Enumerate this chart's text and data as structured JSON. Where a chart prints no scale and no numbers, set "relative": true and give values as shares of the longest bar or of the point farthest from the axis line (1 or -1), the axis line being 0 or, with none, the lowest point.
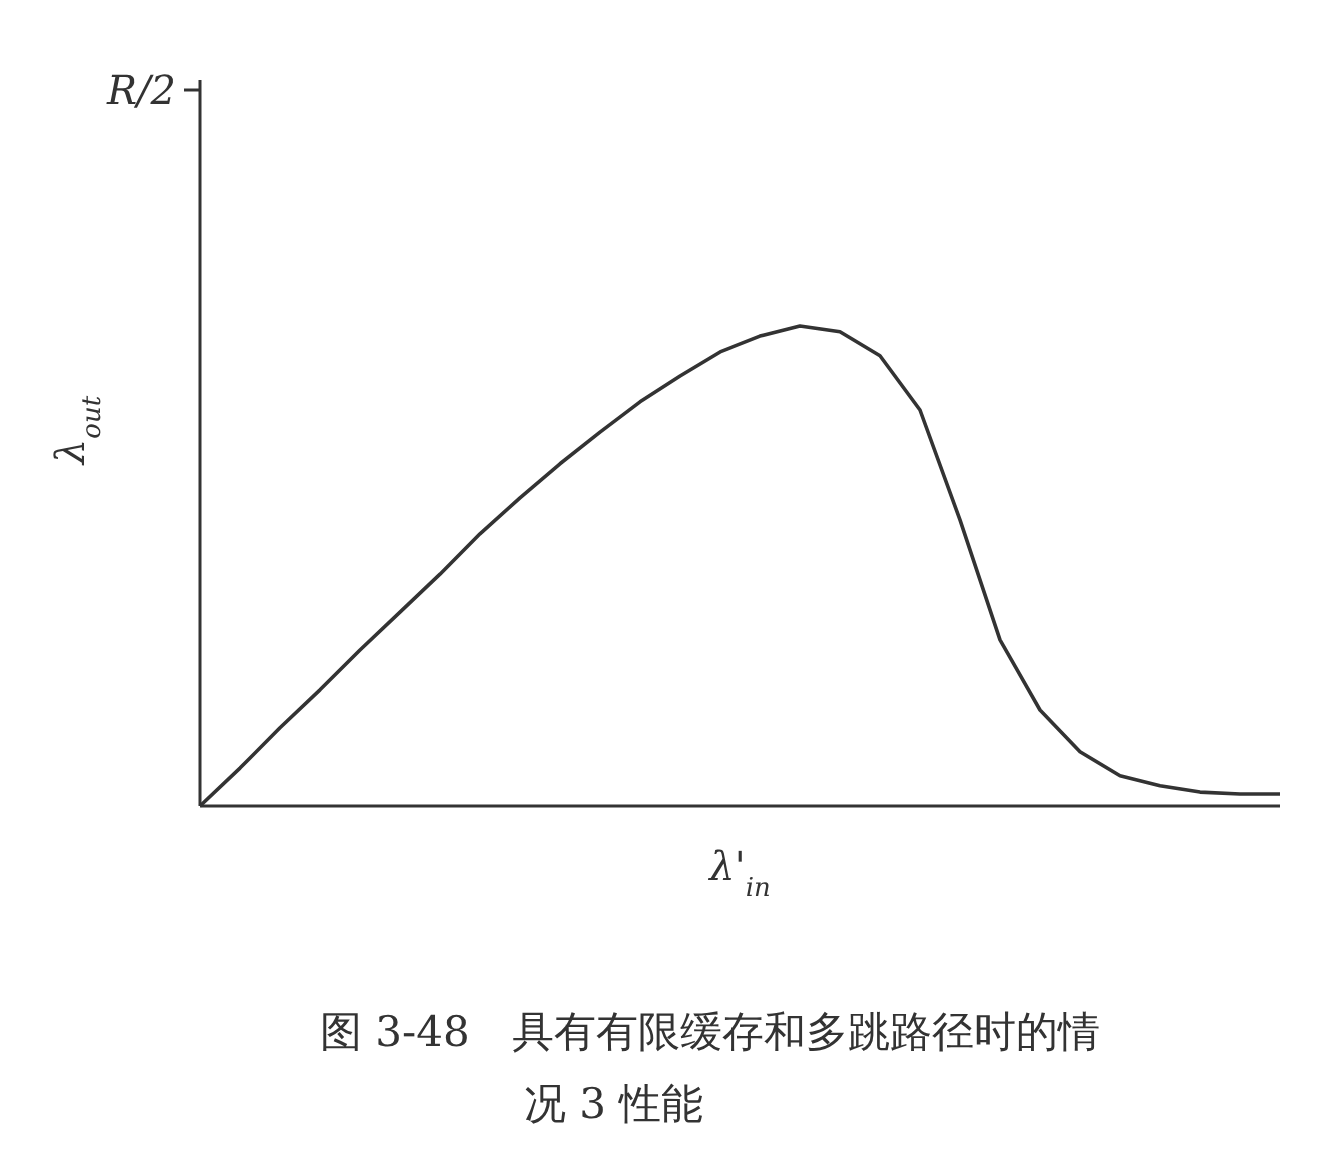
{
  "chart_data": {
    "type": "line",
    "relative": true,
    "title": "图 3-48　具有有限缓存和多跳路径时的情况 3 性能",
    "xlabel": "λ'$_{in}$",
    "ylabel": "λ$_{out}$",
    "annotations": [
      "R/2"
    ],
    "categories": [
      null,
      null,
      null,
      null,
      null,
      null,
      null,
      null,
      null,
      null,
      null,
      null,
      null,
      null,
      null,
      null,
      null,
      null,
      null,
      null,
      null,
      null,
      null,
      null,
      null,
      null,
      null,
      null
    ],
    "series": [
      {
        "color": "#333333",
        "values": [
          0,
          0.079,
          0.163,
          0.242,
          0.325,
          0.404,
          0.483,
          0.567,
          0.642,
          0.713,
          0.779,
          0.842,
          0.896,
          0.946,
          0.979,
          1,
          0.988,
          0.938,
          0.825,
          0.596,
          0.346,
          0.2,
          0.113,
          0.063,
          0.042,
          0.029,
          0.025,
          0.025
        ]
      }
    ]
  }
}
